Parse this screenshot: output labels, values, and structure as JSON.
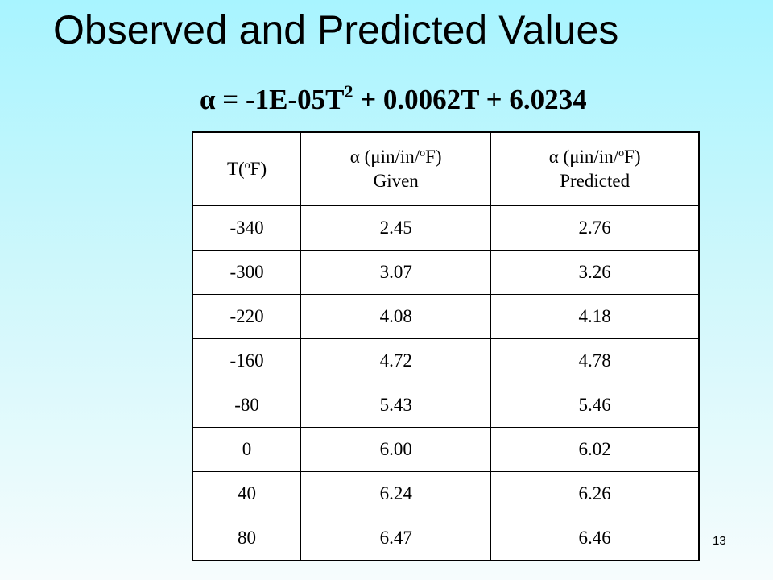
{
  "slide": {
    "title": "Observed and Predicted Values",
    "page_number": "13"
  },
  "equation": {
    "lhs": "α = -1E-05T",
    "exponent": "2",
    "rhs": " + 0.0062T + 6.0234"
  },
  "table": {
    "headers": [
      {
        "pre": "T(",
        "sup": "o",
        "post": "F)",
        "line2": ""
      },
      {
        "pre": "α (μin/in/",
        "sup": "o",
        "post": "F)",
        "line2": "Given"
      },
      {
        "pre": "α (μin/in/",
        "sup": "o",
        "post": "F)",
        "line2": "Predicted"
      }
    ],
    "rows": [
      [
        "-340",
        "2.45",
        "2.76"
      ],
      [
        "-300",
        "3.07",
        "3.26"
      ],
      [
        "-220",
        "4.08",
        "4.18"
      ],
      [
        "-160",
        "4.72",
        "4.78"
      ],
      [
        "-80",
        "5.43",
        "5.46"
      ],
      [
        "0",
        "6.00",
        "6.02"
      ],
      [
        "40",
        "6.24",
        "6.26"
      ],
      [
        "80",
        "6.47",
        "6.46"
      ]
    ]
  }
}
